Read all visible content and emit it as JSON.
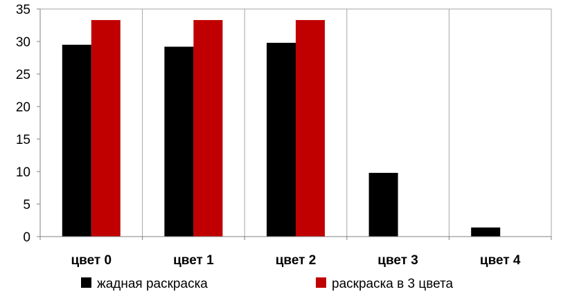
{
  "chart_data": {
    "type": "bar",
    "title": "",
    "xlabel": "",
    "ylabel": "",
    "categories": [
      "цвет 0",
      "цвет 1",
      "цвет 2",
      "цвет 3",
      "цвет 4"
    ],
    "series": [
      {
        "name": "жадная раскраска",
        "color": "#000000",
        "values": [
          29.5,
          29.2,
          29.8,
          9.8,
          1.4
        ]
      },
      {
        "name": "раскраска в 3 цвета",
        "color": "#c00000",
        "values": [
          33.3,
          33.3,
          33.3,
          null,
          null
        ]
      }
    ],
    "ylim": [
      0,
      35
    ],
    "yticks": [
      "0",
      "5",
      "10",
      "15",
      "20",
      "25",
      "30",
      "35"
    ],
    "grid": "vertical category separators",
    "legend_position": "bottom"
  }
}
